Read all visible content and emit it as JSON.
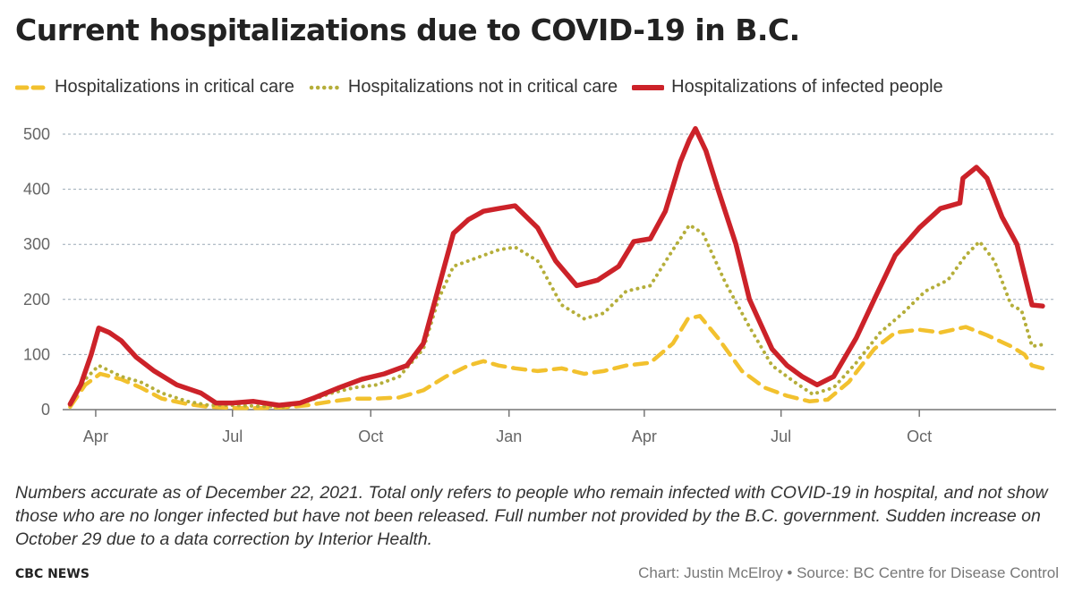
{
  "title": "Current hospitalizations due to COVID-19 in B.C.",
  "note": "Numbers accurate as of December 22, 2021. Total only refers to people who remain infected with COVID-19 in hospital, and not show those who are no longer infected but have not been released. Full number not provided by the B.C. government. Sudden increase on October 29 due to a data correction by Interior Health.",
  "footer": {
    "brand": "CBC NEWS",
    "credit": "Chart: Justin McElroy • Source: BC Centre for Disease Control"
  },
  "chart_data": {
    "type": "line",
    "x_unit": "date",
    "xlim": [
      "2020-03-10",
      "2021-12-31"
    ],
    "ylim": [
      0,
      500
    ],
    "yticks": [
      0,
      100,
      200,
      300,
      400,
      500
    ],
    "xticks": [
      {
        "date": "2020-04-01",
        "label": "Apr"
      },
      {
        "date": "2020-07-01",
        "label": "Jul"
      },
      {
        "date": "2020-10-01",
        "label": "Oct"
      },
      {
        "date": "2021-01-01",
        "label": "Jan"
      },
      {
        "date": "2021-04-01",
        "label": "Apr"
      },
      {
        "date": "2021-07-01",
        "label": "Jul"
      },
      {
        "date": "2021-10-01",
        "label": "Oct"
      }
    ],
    "grid": "horizontal-dotted",
    "legend_position": "top",
    "series": [
      {
        "name": "Hospitalizations in critical care",
        "color": "#f2c12e",
        "style": "dashed",
        "points": [
          [
            "2020-03-15",
            5
          ],
          [
            "2020-03-25",
            45
          ],
          [
            "2020-04-04",
            65
          ],
          [
            "2020-04-18",
            55
          ],
          [
            "2020-05-01",
            40
          ],
          [
            "2020-05-15",
            20
          ],
          [
            "2020-06-01",
            10
          ],
          [
            "2020-06-15",
            5
          ],
          [
            "2020-07-01",
            3
          ],
          [
            "2020-07-20",
            3
          ],
          [
            "2020-08-05",
            4
          ],
          [
            "2020-08-20",
            8
          ],
          [
            "2020-09-05",
            15
          ],
          [
            "2020-09-20",
            20
          ],
          [
            "2020-10-05",
            20
          ],
          [
            "2020-10-20",
            22
          ],
          [
            "2020-11-05",
            35
          ],
          [
            "2020-11-20",
            60
          ],
          [
            "2020-12-05",
            80
          ],
          [
            "2020-12-15",
            88
          ],
          [
            "2020-12-25",
            80
          ],
          [
            "2021-01-05",
            75
          ],
          [
            "2021-01-20",
            70
          ],
          [
            "2021-02-05",
            75
          ],
          [
            "2021-02-20",
            65
          ],
          [
            "2021-03-05",
            70
          ],
          [
            "2021-03-20",
            80
          ],
          [
            "2021-04-05",
            85
          ],
          [
            "2021-04-20",
            120
          ],
          [
            "2021-04-30",
            165
          ],
          [
            "2021-05-08",
            170
          ],
          [
            "2021-05-20",
            130
          ],
          [
            "2021-06-05",
            70
          ],
          [
            "2021-06-20",
            40
          ],
          [
            "2021-07-05",
            25
          ],
          [
            "2021-07-20",
            15
          ],
          [
            "2021-08-01",
            18
          ],
          [
            "2021-08-15",
            50
          ],
          [
            "2021-09-01",
            110
          ],
          [
            "2021-09-15",
            140
          ],
          [
            "2021-10-01",
            145
          ],
          [
            "2021-10-15",
            140
          ],
          [
            "2021-11-01",
            150
          ],
          [
            "2021-11-15",
            135
          ],
          [
            "2021-12-01",
            115
          ],
          [
            "2021-12-10",
            100
          ],
          [
            "2021-12-15",
            80
          ],
          [
            "2021-12-22",
            75
          ]
        ]
      },
      {
        "name": "Hospitalizations not in critical care",
        "color": "#b5ae3a",
        "style": "dotted",
        "points": [
          [
            "2020-03-15",
            8
          ],
          [
            "2020-03-25",
            55
          ],
          [
            "2020-04-03",
            80
          ],
          [
            "2020-04-18",
            60
          ],
          [
            "2020-05-01",
            50
          ],
          [
            "2020-05-15",
            30
          ],
          [
            "2020-06-01",
            15
          ],
          [
            "2020-06-15",
            8
          ],
          [
            "2020-07-01",
            8
          ],
          [
            "2020-07-20",
            6
          ],
          [
            "2020-08-05",
            5
          ],
          [
            "2020-08-20",
            15
          ],
          [
            "2020-09-05",
            30
          ],
          [
            "2020-09-20",
            40
          ],
          [
            "2020-10-05",
            45
          ],
          [
            "2020-10-20",
            60
          ],
          [
            "2020-11-05",
            110
          ],
          [
            "2020-11-15",
            200
          ],
          [
            "2020-11-25",
            260
          ],
          [
            "2020-12-10",
            275
          ],
          [
            "2020-12-25",
            290
          ],
          [
            "2021-01-05",
            295
          ],
          [
            "2021-01-20",
            270
          ],
          [
            "2021-02-05",
            190
          ],
          [
            "2021-02-20",
            165
          ],
          [
            "2021-03-05",
            175
          ],
          [
            "2021-03-20",
            215
          ],
          [
            "2021-04-05",
            225
          ],
          [
            "2021-04-20",
            290
          ],
          [
            "2021-05-01",
            335
          ],
          [
            "2021-05-10",
            320
          ],
          [
            "2021-05-25",
            230
          ],
          [
            "2021-06-10",
            150
          ],
          [
            "2021-06-25",
            80
          ],
          [
            "2021-07-10",
            50
          ],
          [
            "2021-07-22",
            28
          ],
          [
            "2021-08-05",
            40
          ],
          [
            "2021-08-20",
            85
          ],
          [
            "2021-09-05",
            140
          ],
          [
            "2021-09-20",
            175
          ],
          [
            "2021-10-05",
            215
          ],
          [
            "2021-10-20",
            235
          ],
          [
            "2021-11-01",
            280
          ],
          [
            "2021-11-10",
            305
          ],
          [
            "2021-11-20",
            270
          ],
          [
            "2021-12-01",
            190
          ],
          [
            "2021-12-08",
            180
          ],
          [
            "2021-12-15",
            115
          ],
          [
            "2021-12-22",
            118
          ]
        ]
      },
      {
        "name": "Hospitalizations of infected people",
        "color": "#cc2229",
        "style": "solid",
        "points": [
          [
            "2020-03-15",
            10
          ],
          [
            "2020-03-22",
            45
          ],
          [
            "2020-03-29",
            100
          ],
          [
            "2020-04-03",
            148
          ],
          [
            "2020-04-10",
            140
          ],
          [
            "2020-04-18",
            125
          ],
          [
            "2020-04-28",
            95
          ],
          [
            "2020-05-10",
            70
          ],
          [
            "2020-05-25",
            45
          ],
          [
            "2020-06-10",
            30
          ],
          [
            "2020-06-20",
            12
          ],
          [
            "2020-07-01",
            12
          ],
          [
            "2020-07-15",
            15
          ],
          [
            "2020-08-01",
            8
          ],
          [
            "2020-08-15",
            12
          ],
          [
            "2020-08-25",
            22
          ],
          [
            "2020-09-10",
            40
          ],
          [
            "2020-09-25",
            55
          ],
          [
            "2020-10-10",
            65
          ],
          [
            "2020-10-25",
            80
          ],
          [
            "2020-11-05",
            120
          ],
          [
            "2020-11-15",
            220
          ],
          [
            "2020-11-25",
            320
          ],
          [
            "2020-12-05",
            345
          ],
          [
            "2020-12-15",
            360
          ],
          [
            "2020-12-25",
            365
          ],
          [
            "2021-01-05",
            370
          ],
          [
            "2021-01-20",
            330
          ],
          [
            "2021-02-01",
            270
          ],
          [
            "2021-02-15",
            225
          ],
          [
            "2021-03-01",
            235
          ],
          [
            "2021-03-15",
            260
          ],
          [
            "2021-03-25",
            305
          ],
          [
            "2021-04-05",
            310
          ],
          [
            "2021-04-15",
            360
          ],
          [
            "2021-04-25",
            450
          ],
          [
            "2021-05-01",
            490
          ],
          [
            "2021-05-05",
            510
          ],
          [
            "2021-05-12",
            470
          ],
          [
            "2021-05-20",
            400
          ],
          [
            "2021-06-01",
            300
          ],
          [
            "2021-06-10",
            200
          ],
          [
            "2021-06-25",
            110
          ],
          [
            "2021-07-05",
            80
          ],
          [
            "2021-07-15",
            60
          ],
          [
            "2021-07-25",
            45
          ],
          [
            "2021-08-05",
            60
          ],
          [
            "2021-08-20",
            130
          ],
          [
            "2021-09-01",
            200
          ],
          [
            "2021-09-15",
            280
          ],
          [
            "2021-10-01",
            330
          ],
          [
            "2021-10-15",
            365
          ],
          [
            "2021-10-28",
            375
          ],
          [
            "2021-10-30",
            420
          ],
          [
            "2021-11-08",
            440
          ],
          [
            "2021-11-15",
            420
          ],
          [
            "2021-11-25",
            350
          ],
          [
            "2021-12-05",
            300
          ],
          [
            "2021-12-15",
            190
          ],
          [
            "2021-12-22",
            188
          ]
        ]
      }
    ]
  }
}
